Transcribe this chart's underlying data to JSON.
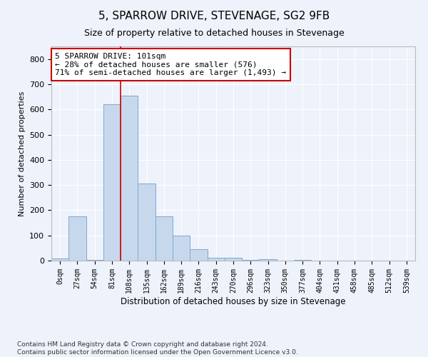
{
  "title": "5, SPARROW DRIVE, STEVENAGE, SG2 9FB",
  "subtitle": "Size of property relative to detached houses in Stevenage",
  "xlabel": "Distribution of detached houses by size in Stevenage",
  "ylabel": "Number of detached properties",
  "bar_color": "#c8d8ec",
  "bar_edge_color": "#7aaad0",
  "background_color": "#eef2fb",
  "grid_color": "#ffffff",
  "ylim": [
    0,
    850
  ],
  "bin_labels": [
    "0sqm",
    "27sqm",
    "54sqm",
    "81sqm",
    "108sqm",
    "135sqm",
    "162sqm",
    "189sqm",
    "216sqm",
    "243sqm",
    "270sqm",
    "296sqm",
    "323sqm",
    "350sqm",
    "377sqm",
    "404sqm",
    "431sqm",
    "458sqm",
    "485sqm",
    "512sqm",
    "539sqm"
  ],
  "bar_values": [
    8,
    175,
    2,
    620,
    655,
    305,
    175,
    98,
    45,
    12,
    10,
    2,
    5,
    0,
    3,
    0,
    0,
    0,
    0,
    0,
    0
  ],
  "vline_x": 3.5,
  "annotation_text": "5 SPARROW DRIVE: 101sqm\n← 28% of detached houses are smaller (576)\n71% of semi-detached houses are larger (1,493) →",
  "annotation_box_color": "#ffffff",
  "annotation_box_edge_color": "#cc0000",
  "annotation_text_color": "#000000",
  "vline_color": "#cc0000",
  "footer_text": "Contains HM Land Registry data © Crown copyright and database right 2024.\nContains public sector information licensed under the Open Government Licence v3.0.",
  "yticks": [
    0,
    100,
    200,
    300,
    400,
    500,
    600,
    700,
    800
  ]
}
